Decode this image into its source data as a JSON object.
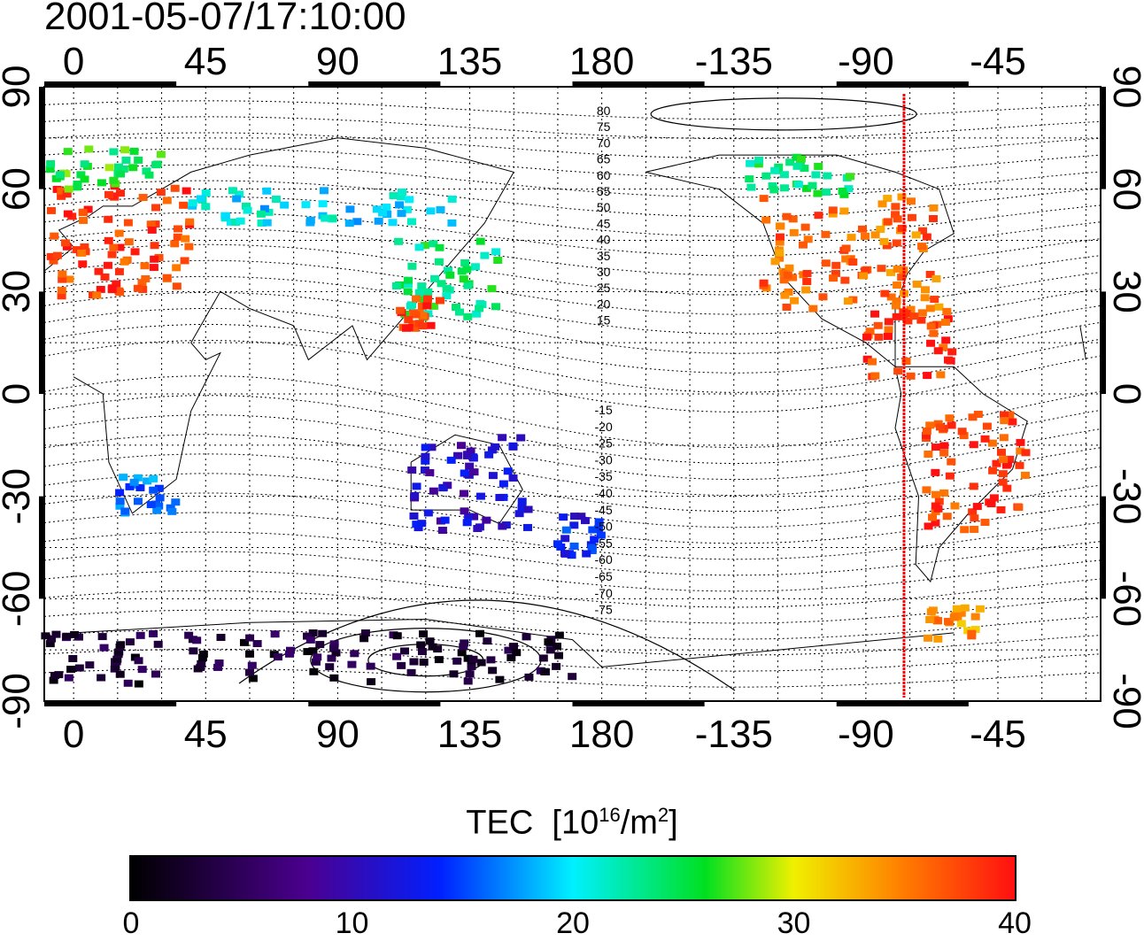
{
  "title": "2001-05-07/17:10:00",
  "map": {
    "lon_ticks": [
      0,
      45,
      90,
      135,
      180,
      -135,
      -90,
      -45
    ],
    "lat_ticks": [
      90,
      60,
      30,
      0,
      -30,
      -60,
      -90
    ],
    "lon_start": -10,
    "lon_span": 360,
    "lat_range": [
      -90,
      90
    ],
    "contour_labels": [
      "80",
      "75",
      "70",
      "65",
      "60",
      "55",
      "50",
      "45",
      "40",
      "35",
      "30",
      "25",
      "20",
      "15",
      "-15",
      "-20",
      "-25",
      "-30",
      "-35",
      "-40",
      "-45",
      "-50",
      "-55",
      "-60",
      "-65",
      "-70",
      "-75"
    ],
    "terminator_longitude": -77,
    "colors": {
      "terminator": "#ff0000",
      "grid": "#000000"
    },
    "tec_regions": [
      {
        "name": "europe",
        "lon": [
          -8,
          40
        ],
        "lat": [
          28,
          62
        ],
        "value": 38
      },
      {
        "name": "scandinavia",
        "lon": [
          -8,
          30
        ],
        "lat": [
          60,
          72
        ],
        "value": 26
      },
      {
        "name": "north-america",
        "lon": [
          -125,
          -65
        ],
        "lat": [
          25,
          58
        ],
        "value": 36
      },
      {
        "name": "canada",
        "lon": [
          -130,
          -95
        ],
        "lat": [
          58,
          70
        ],
        "value": 24
      },
      {
        "name": "caribbean",
        "lon": [
          -90,
          -60
        ],
        "lat": [
          5,
          25
        ],
        "value": 38
      },
      {
        "name": "south-america",
        "lon": [
          -70,
          -35
        ],
        "lat": [
          -40,
          -5
        ],
        "value": 38
      },
      {
        "name": "east-asia",
        "lon": [
          110,
          145
        ],
        "lat": [
          22,
          45
        ],
        "value": 24
      },
      {
        "name": "china-south",
        "lon": [
          110,
          125
        ],
        "lat": [
          18,
          28
        ],
        "value": 38
      },
      {
        "name": "australia",
        "lon": [
          115,
          155
        ],
        "lat": [
          -40,
          -12
        ],
        "value": 11
      },
      {
        "name": "new-zealand",
        "lon": [
          165,
          180
        ],
        "lat": [
          -48,
          -35
        ],
        "value": 13
      },
      {
        "name": "south-africa",
        "lon": [
          15,
          35
        ],
        "lat": [
          -35,
          -24
        ],
        "value": 16
      },
      {
        "name": "siberia",
        "lon": [
          40,
          130
        ],
        "lat": [
          50,
          60
        ],
        "value": 20
      },
      {
        "name": "antarctica",
        "lon": [
          -10,
          170
        ],
        "lat": [
          -85,
          -70
        ],
        "value": 3
      },
      {
        "name": "antarctic-peninsula",
        "lon": [
          -70,
          -50
        ],
        "lat": [
          -72,
          -62
        ],
        "value": 34
      }
    ]
  },
  "colorbar": {
    "title_main": "TEC",
    "title_unit_prefix": "[10",
    "title_unit_exp": "16",
    "title_unit_mid": "/m",
    "title_unit_exp2": "2",
    "title_unit_suffix": "]",
    "ticks": [
      "0",
      "10",
      "20",
      "30",
      "40"
    ],
    "range": [
      0,
      40
    ]
  }
}
